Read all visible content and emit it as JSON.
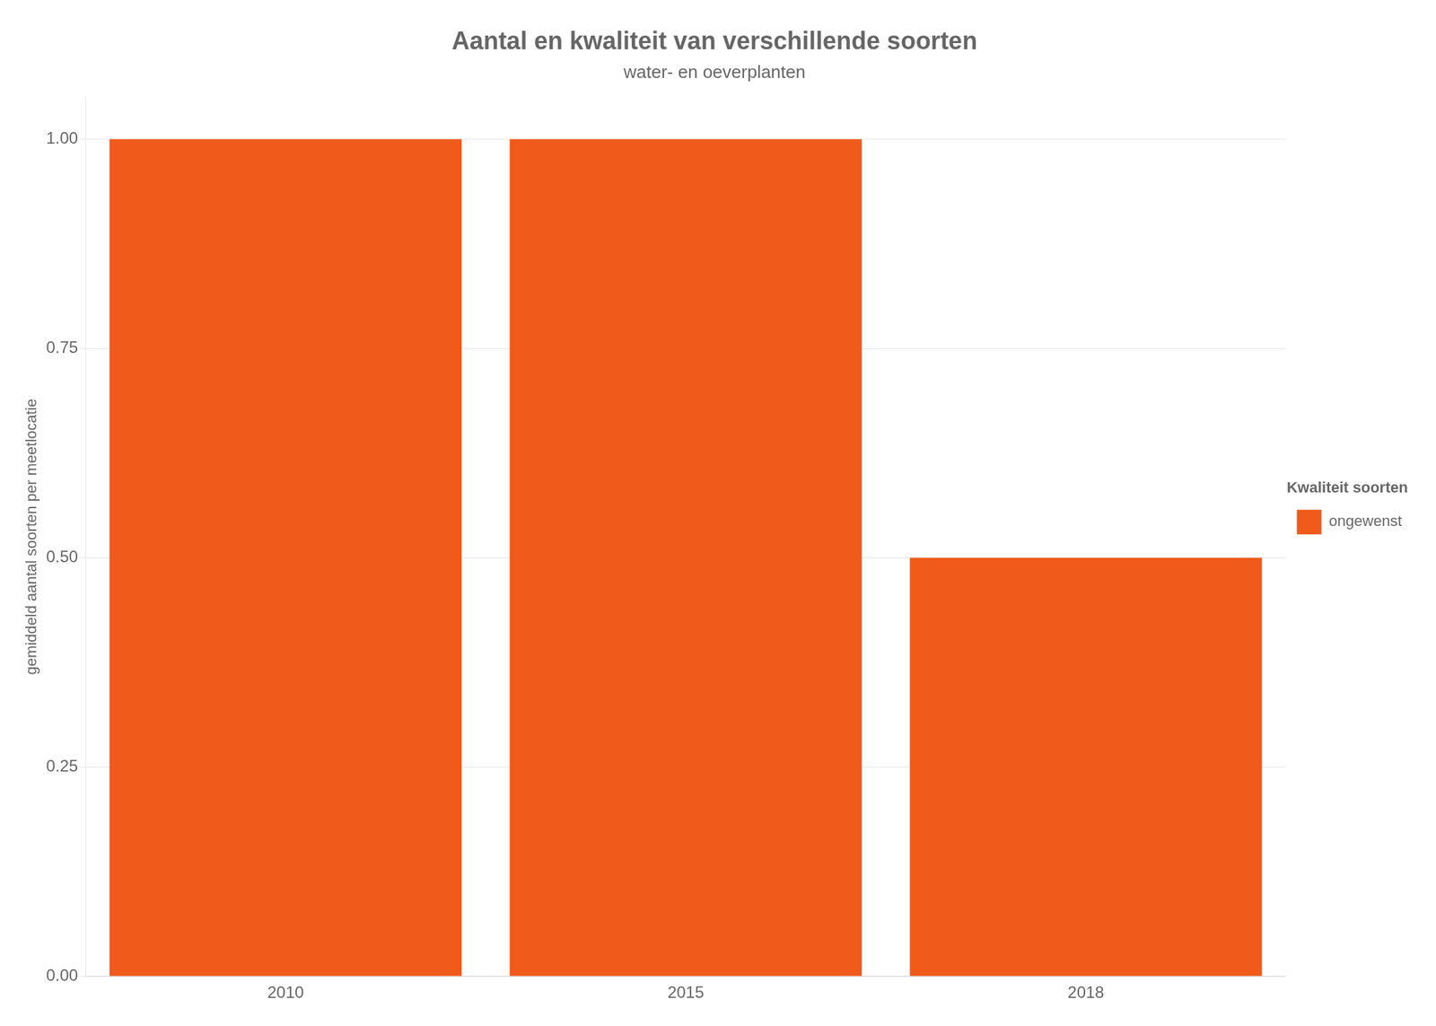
{
  "chart_data": {
    "type": "bar",
    "title": "Aantal en kwaliteit van verschillende soorten",
    "subtitle": "water- en oeverplanten",
    "ylabel": "gemiddeld aantal soorten per meetlocatie",
    "categories": [
      "2010",
      "2015",
      "2018"
    ],
    "series": [
      {
        "name": "ongewenst",
        "color": "#F05A1A",
        "values": [
          1.0,
          1.0,
          0.5
        ]
      }
    ],
    "legend_title": "Kwaliteit soorten",
    "legend": "right",
    "ylim": [
      0,
      1.05
    ],
    "yticks": [
      {
        "value": 0.0,
        "label": "0.00"
      },
      {
        "value": 0.25,
        "label": "0.25"
      },
      {
        "value": 0.5,
        "label": "0.50"
      },
      {
        "value": 0.75,
        "label": "0.75"
      },
      {
        "value": 1.0,
        "label": "1.00"
      }
    ],
    "grid": true
  }
}
